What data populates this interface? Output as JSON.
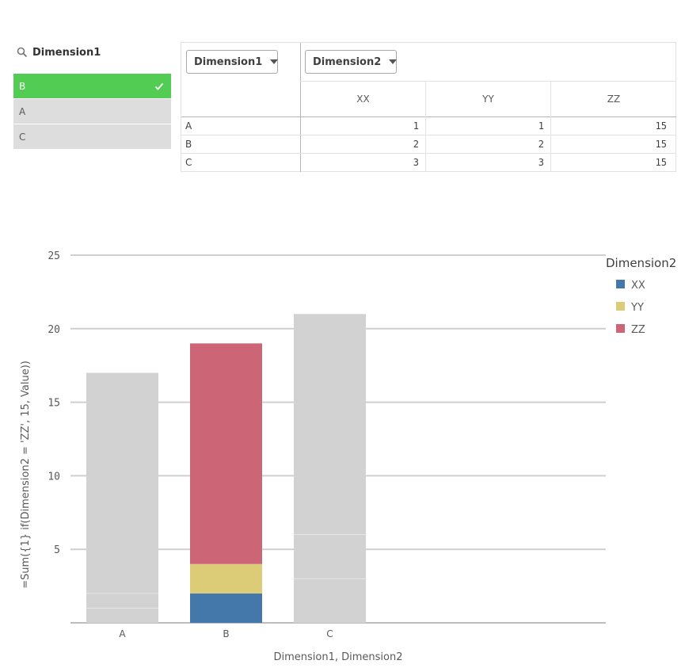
{
  "filter": {
    "title": "Dimension1",
    "items": [
      {
        "label": "B",
        "state": "selected"
      },
      {
        "label": "A",
        "state": "alternative"
      },
      {
        "label": "C",
        "state": "alternative"
      }
    ]
  },
  "pivot": {
    "row_dim_button": "Dimension1",
    "col_dim_button": "Dimension2",
    "columns": [
      "XX",
      "YY",
      "ZZ"
    ],
    "rows": [
      {
        "label": "A",
        "values": [
          "1",
          "1",
          "15"
        ]
      },
      {
        "label": "B",
        "values": [
          "2",
          "2",
          "15"
        ]
      },
      {
        "label": "C",
        "values": [
          "3",
          "3",
          "15"
        ]
      }
    ]
  },
  "chart_data": {
    "type": "bar",
    "stacked": true,
    "categories": [
      "A",
      "B",
      "C"
    ],
    "series": [
      {
        "name": "XX",
        "values": [
          1,
          2,
          3
        ],
        "color": "#4477aa"
      },
      {
        "name": "YY",
        "values": [
          1,
          2,
          3
        ],
        "color": "#ddcc77"
      },
      {
        "name": "ZZ",
        "values": [
          15,
          15,
          15
        ],
        "color": "#cc6677"
      }
    ],
    "selected_category": "B",
    "dimmed_color": "#d2d2d2",
    "ylim": [
      0,
      25
    ],
    "yticks": [
      5,
      10,
      15,
      20,
      25
    ],
    "ylabel": "=Sum({1} if(Dimension2 = 'ZZ', 15, Value))",
    "xlabel": "Dimension1,  Dimension2",
    "legend_title": "Dimension2",
    "legend_position": "top-right",
    "grid": true
  }
}
